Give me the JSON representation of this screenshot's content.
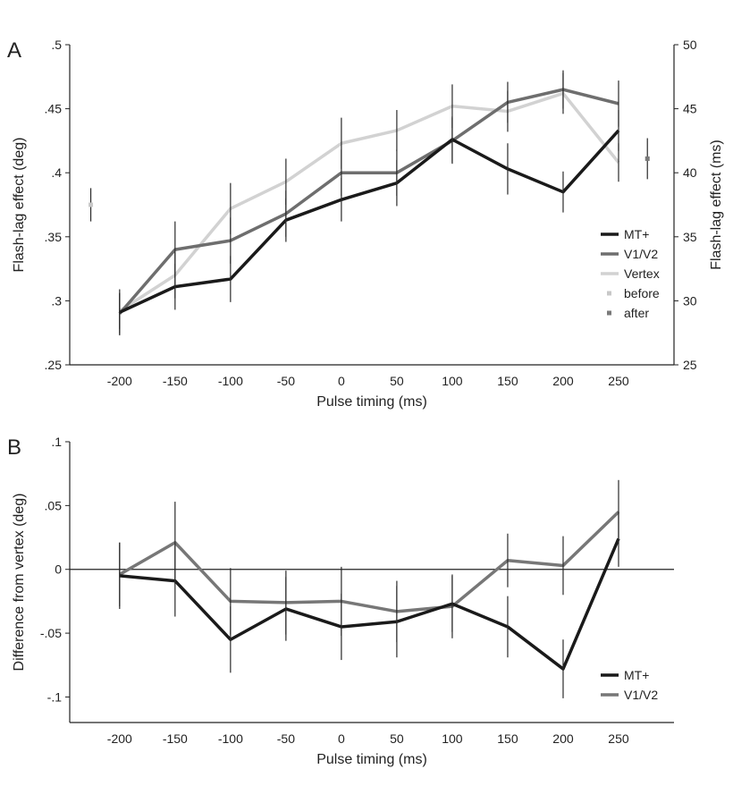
{
  "chart_data": [
    {
      "panel": "A",
      "type": "line",
      "xlabel": "Pulse timing (ms)",
      "ylabel": "Flash-lag effect (deg)",
      "ylabel_right": "Flash-lag effect (ms)",
      "categories": [
        "-200",
        "-150",
        "-100",
        "-50",
        "0",
        "50",
        "100",
        "150",
        "200",
        "250"
      ],
      "x": [
        -200,
        -150,
        -100,
        -50,
        0,
        50,
        100,
        150,
        200,
        250
      ],
      "xlim": [
        -245,
        300
      ],
      "ylim": [
        0.25,
        0.5
      ],
      "y_ticks": [
        ".25",
        ".3",
        ".35",
        ".4",
        ".45",
        ".5"
      ],
      "y_tick_values": [
        0.25,
        0.3,
        0.35,
        0.4,
        0.45,
        0.5
      ],
      "y_right_ticks": [
        "25",
        "30",
        "35",
        "40",
        "45",
        "50"
      ],
      "series": [
        {
          "name": "MT+",
          "color": "#1a1a1a",
          "values": [
            0.291,
            0.311,
            0.317,
            0.363,
            0.379,
            0.392,
            0.426,
            0.403,
            0.385,
            0.433
          ],
          "errors": [
            0.018,
            0.018,
            0.018,
            0.017,
            0.017,
            0.018,
            0.018,
            0.02,
            0.016,
            0.016
          ]
        },
        {
          "name": "V1/V2",
          "color": "#6e6e6e",
          "values": [
            0.29,
            0.34,
            0.347,
            0.368,
            0.4,
            0.4,
            0.425,
            0.455,
            0.465,
            0.454
          ],
          "errors": [
            0.016,
            0.022,
            0.018,
            0.018,
            0.018,
            0.018,
            0.018,
            0.016,
            0.015,
            0.018
          ]
        },
        {
          "name": "Vertex",
          "color": "#d2d2d2",
          "values": [
            0.292,
            0.32,
            0.372,
            0.393,
            0.423,
            0.433,
            0.452,
            0.448,
            0.462,
            0.408
          ],
          "errors": [
            0.014,
            0.018,
            0.02,
            0.018,
            0.02,
            0.016,
            0.017,
            0.016,
            0.016,
            0.015
          ]
        }
      ],
      "extra_points": [
        {
          "name": "before",
          "color": "#c8c8c8",
          "x": -226,
          "value": 0.375,
          "error": 0.013
        },
        {
          "name": "after",
          "color": "#7a7a7a",
          "x": 276,
          "value": 0.411,
          "error": 0.016
        }
      ]
    },
    {
      "panel": "B",
      "type": "line",
      "xlabel": "Pulse timing (ms)",
      "ylabel": "Difference from vertex (deg)",
      "categories": [
        "-200",
        "-150",
        "-100",
        "-50",
        "0",
        "50",
        "100",
        "150",
        "200",
        "250"
      ],
      "x": [
        -200,
        -150,
        -100,
        -50,
        0,
        50,
        100,
        150,
        200,
        250
      ],
      "xlim": [
        -245,
        300
      ],
      "ylim": [
        -0.12,
        0.1
      ],
      "y_ticks": [
        "-.1",
        "-.05",
        "0",
        ".05",
        ".1"
      ],
      "y_tick_values": [
        -0.1,
        -0.05,
        0,
        0.05,
        0.1
      ],
      "zero_line": true,
      "series": [
        {
          "name": "MT+",
          "color": "#1a1a1a",
          "values": [
            -0.005,
            -0.009,
            -0.055,
            -0.031,
            -0.045,
            -0.041,
            -0.027,
            -0.045,
            -0.078,
            0.024
          ],
          "errors": [
            0.026,
            0.028,
            0.026,
            0.025,
            0.026,
            0.028,
            0.022,
            0.024,
            0.023,
            0.022
          ]
        },
        {
          "name": "V1/V2",
          "color": "#777777",
          "values": [
            -0.004,
            0.021,
            -0.025,
            -0.026,
            -0.025,
            -0.033,
            -0.029,
            0.007,
            0.003,
            0.045
          ],
          "errors": [
            0.025,
            0.032,
            0.026,
            0.025,
            0.027,
            0.024,
            0.025,
            0.021,
            0.023,
            0.025
          ]
        }
      ]
    }
  ]
}
